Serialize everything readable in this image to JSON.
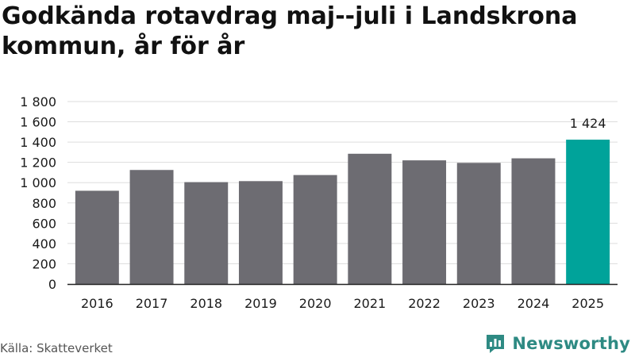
{
  "title": "Godkända rotavdrag maj--juli i Landskrona kommun, år för år",
  "source": "Källa: Skatteverket",
  "brand": {
    "name": "Newsworthy",
    "icon": "newsworthy-logo-icon",
    "color": "#2e8a83"
  },
  "colors": {
    "bar": "#6d6c72",
    "highlight": "#00a39a",
    "grid": "#dddddd",
    "axis": "#222222"
  },
  "chart_data": {
    "type": "bar",
    "title": "Godkända rotavdrag maj--juli i Landskrona kommun, år för år",
    "xlabel": "",
    "ylabel": "",
    "categories": [
      "2016",
      "2017",
      "2018",
      "2019",
      "2020",
      "2021",
      "2022",
      "2023",
      "2024",
      "2025"
    ],
    "values": [
      920,
      1125,
      1005,
      1015,
      1075,
      1285,
      1220,
      1195,
      1240,
      1424
    ],
    "highlight_index": 9,
    "data_labels": [
      {
        "index": 9,
        "text": "1 424"
      }
    ],
    "ylim": [
      0,
      1800
    ],
    "yticks": [
      {
        "value": 0,
        "label": "0"
      },
      {
        "value": 200,
        "label": "200"
      },
      {
        "value": 400,
        "label": "400"
      },
      {
        "value": 600,
        "label": "600"
      },
      {
        "value": 800,
        "label": "800"
      },
      {
        "value": 1000,
        "label": "1 000"
      },
      {
        "value": 1200,
        "label": "1 200"
      },
      {
        "value": 1400,
        "label": "1 400"
      },
      {
        "value": 1600,
        "label": "1 600"
      },
      {
        "value": 1800,
        "label": "1 800"
      }
    ],
    "grid": true,
    "legend": "none"
  }
}
